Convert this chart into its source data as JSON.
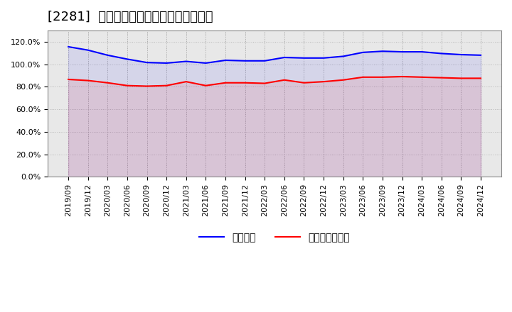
{
  "title": "[2281]  固定比率、固定長期適合率の推移",
  "x_labels": [
    "2019/09",
    "2019/12",
    "2020/03",
    "2020/06",
    "2020/09",
    "2020/12",
    "2021/03",
    "2021/06",
    "2021/09",
    "2021/12",
    "2022/03",
    "2022/06",
    "2022/09",
    "2022/12",
    "2023/03",
    "2023/06",
    "2023/09",
    "2023/12",
    "2024/03",
    "2024/06",
    "2024/09",
    "2024/12"
  ],
  "fixed_ratio": [
    115.5,
    112.5,
    108.0,
    104.5,
    101.5,
    101.0,
    102.5,
    101.0,
    103.5,
    103.0,
    103.0,
    106.0,
    105.5,
    105.5,
    107.0,
    110.5,
    111.5,
    111.0,
    111.0,
    109.5,
    108.5,
    108.0
  ],
  "fixed_long_ratio": [
    86.5,
    85.5,
    83.5,
    81.0,
    80.5,
    81.0,
    84.5,
    81.0,
    83.5,
    83.5,
    83.0,
    86.0,
    83.5,
    84.5,
    86.0,
    88.5,
    88.5,
    89.0,
    88.5,
    88.0,
    87.5,
    87.5
  ],
  "line1_color": "#0000ff",
  "line2_color": "#ff0000",
  "line1_label": "固定比率",
  "line2_label": "固定長期適合率",
  "bg_color": "#ffffff",
  "plot_bg_color": "#e8e8e8",
  "ylim": [
    0,
    130
  ],
  "yticks": [
    0,
    20,
    40,
    60,
    80,
    100,
    120
  ],
  "ytick_labels": [
    "0.0%",
    "20.0%",
    "40.0%",
    "60.0%",
    "80.0%",
    "100.0%",
    "120.0%"
  ],
  "grid_color": "#aaaaaa",
  "title_fontsize": 13,
  "legend_fontsize": 10,
  "tick_fontsize": 8
}
